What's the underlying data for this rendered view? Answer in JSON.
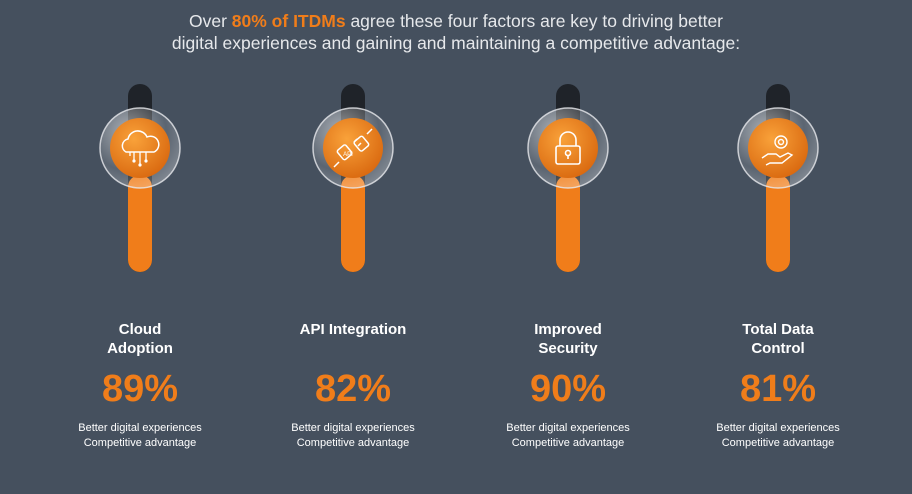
{
  "header": {
    "title_prefix": "Over",
    "title_highlight": "80% of ITDMs",
    "title_rest": "agree these four factors are key to driving better digital experiences and gaining and maintaining a competitive advantage:"
  },
  "factors": [
    {
      "label": "Cloud Adoption",
      "percent": "89%",
      "line1": "Better digital experiences",
      "line2": "Competitive advantage"
    },
    {
      "label": "API Integration",
      "percent": "82%",
      "line1": "Better digital experiences",
      "line2": "Competitive advantage"
    },
    {
      "label": "Improved Security",
      "percent": "90%",
      "line1": "Better digital experiences",
      "line2": "Competitive advantage"
    },
    {
      "label": "Total Data Control",
      "percent": "81%",
      "line1": "Better digital experiences",
      "line2": "Competitive advantage"
    }
  ]
}
